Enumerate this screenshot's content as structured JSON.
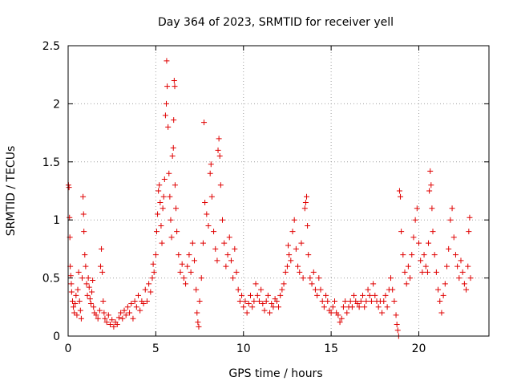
{
  "chart_data": {
    "type": "scatter",
    "title": "Day 364 of 2023, SRMTID for receiver yell",
    "xlabel": "GPS time / hours",
    "ylabel": "SRMTID / TECUs",
    "xlim": [
      0,
      24
    ],
    "ylim": [
      0,
      2.5
    ],
    "xticks": [
      0,
      5,
      10,
      15,
      20
    ],
    "yticks": [
      0,
      0.5,
      1,
      1.5,
      2,
      2.5
    ],
    "xtick_labels": [
      "0",
      "5",
      "10",
      "15",
      "20"
    ],
    "ytick_labels": [
      "0",
      "0.5",
      "1",
      "1.5",
      "2",
      "2.5"
    ],
    "grid": true,
    "marker": "+",
    "color": "#e00000",
    "series": [
      {
        "name": "yell",
        "points": [
          [
            0.02,
            1.3
          ],
          [
            0.05,
            1.28
          ],
          [
            0.08,
            1.02
          ],
          [
            0.1,
            0.85
          ],
          [
            0.12,
            0.6
          ],
          [
            0.15,
            0.52
          ],
          [
            0.18,
            0.45
          ],
          [
            0.2,
            0.38
          ],
          [
            0.25,
            0.3
          ],
          [
            0.3,
            0.25
          ],
          [
            0.35,
            0.2
          ],
          [
            0.4,
            0.28
          ],
          [
            0.45,
            0.35
          ],
          [
            0.5,
            0.18
          ],
          [
            0.55,
            0.4
          ],
          [
            0.6,
            0.55
          ],
          [
            0.65,
            0.3
          ],
          [
            0.7,
            0.22
          ],
          [
            0.75,
            0.15
          ],
          [
            0.8,
            0.5
          ],
          [
            0.85,
            1.2
          ],
          [
            0.88,
            1.05
          ],
          [
            0.9,
            0.9
          ],
          [
            0.95,
            0.7
          ],
          [
            1.0,
            0.6
          ],
          [
            1.05,
            0.45
          ],
          [
            1.1,
            0.35
          ],
          [
            1.15,
            0.5
          ],
          [
            1.2,
            0.42
          ],
          [
            1.25,
            0.32
          ],
          [
            1.3,
            0.28
          ],
          [
            1.35,
            0.38
          ],
          [
            1.4,
            0.48
          ],
          [
            1.45,
            0.25
          ],
          [
            1.5,
            0.2
          ],
          [
            1.6,
            0.18
          ],
          [
            1.7,
            0.15
          ],
          [
            1.8,
            0.22
          ],
          [
            1.85,
            0.6
          ],
          [
            1.9,
            0.75
          ],
          [
            1.95,
            0.55
          ],
          [
            2.0,
            0.3
          ],
          [
            2.05,
            0.2
          ],
          [
            2.1,
            0.15
          ],
          [
            2.2,
            0.12
          ],
          [
            2.3,
            0.18
          ],
          [
            2.4,
            0.1
          ],
          [
            2.5,
            0.14
          ],
          [
            2.6,
            0.08
          ],
          [
            2.7,
            0.12
          ],
          [
            2.8,
            0.1
          ],
          [
            2.9,
            0.16
          ],
          [
            3.0,
            0.2
          ],
          [
            3.1,
            0.15
          ],
          [
            3.2,
            0.22
          ],
          [
            3.3,
            0.18
          ],
          [
            3.4,
            0.25
          ],
          [
            3.5,
            0.2
          ],
          [
            3.6,
            0.28
          ],
          [
            3.7,
            0.15
          ],
          [
            3.8,
            0.3
          ],
          [
            3.9,
            0.25
          ],
          [
            4.0,
            0.35
          ],
          [
            4.1,
            0.22
          ],
          [
            4.2,
            0.3
          ],
          [
            4.3,
            0.28
          ],
          [
            4.4,
            0.4
          ],
          [
            4.5,
            0.3
          ],
          [
            4.6,
            0.45
          ],
          [
            4.7,
            0.38
          ],
          [
            4.8,
            0.5
          ],
          [
            4.85,
            0.62
          ],
          [
            4.9,
            0.55
          ],
          [
            5.0,
            0.7
          ],
          [
            5.05,
            0.9
          ],
          [
            5.1,
            1.05
          ],
          [
            5.15,
            1.25
          ],
          [
            5.2,
            1.3
          ],
          [
            5.25,
            1.15
          ],
          [
            5.3,
            0.95
          ],
          [
            5.35,
            0.8
          ],
          [
            5.4,
            1.1
          ],
          [
            5.45,
            1.2
          ],
          [
            5.5,
            1.35
          ],
          [
            5.55,
            1.9
          ],
          [
            5.6,
            2.0
          ],
          [
            5.62,
            2.37
          ],
          [
            5.65,
            2.15
          ],
          [
            5.7,
            1.8
          ],
          [
            5.75,
            1.4
          ],
          [
            5.8,
            1.2
          ],
          [
            5.85,
            1.0
          ],
          [
            5.9,
            0.85
          ],
          [
            5.95,
            1.55
          ],
          [
            6.0,
            1.62
          ],
          [
            6.02,
            1.86
          ],
          [
            6.05,
            2.2
          ],
          [
            6.08,
            2.15
          ],
          [
            6.1,
            1.3
          ],
          [
            6.15,
            1.1
          ],
          [
            6.2,
            0.9
          ],
          [
            6.3,
            0.7
          ],
          [
            6.4,
            0.55
          ],
          [
            6.5,
            0.62
          ],
          [
            6.6,
            0.5
          ],
          [
            6.7,
            0.45
          ],
          [
            6.8,
            0.6
          ],
          [
            6.9,
            0.7
          ],
          [
            7.0,
            0.55
          ],
          [
            7.1,
            0.8
          ],
          [
            7.2,
            0.65
          ],
          [
            7.3,
            0.4
          ],
          [
            7.35,
            0.2
          ],
          [
            7.4,
            0.12
          ],
          [
            7.45,
            0.08
          ],
          [
            7.5,
            0.3
          ],
          [
            7.6,
            0.5
          ],
          [
            7.7,
            0.8
          ],
          [
            7.75,
            1.84
          ],
          [
            7.8,
            1.15
          ],
          [
            7.9,
            1.05
          ],
          [
            8.0,
            0.95
          ],
          [
            8.1,
            1.4
          ],
          [
            8.15,
            1.48
          ],
          [
            8.2,
            1.2
          ],
          [
            8.3,
            0.9
          ],
          [
            8.4,
            0.75
          ],
          [
            8.5,
            0.65
          ],
          [
            8.55,
            1.6
          ],
          [
            8.6,
            1.7
          ],
          [
            8.65,
            1.55
          ],
          [
            8.7,
            1.3
          ],
          [
            8.8,
            1.0
          ],
          [
            8.9,
            0.8
          ],
          [
            9.0,
            0.6
          ],
          [
            9.1,
            0.7
          ],
          [
            9.2,
            0.85
          ],
          [
            9.3,
            0.65
          ],
          [
            9.4,
            0.5
          ],
          [
            9.5,
            0.75
          ],
          [
            9.6,
            0.55
          ],
          [
            9.7,
            0.4
          ],
          [
            9.8,
            0.3
          ],
          [
            9.9,
            0.35
          ],
          [
            10.0,
            0.25
          ],
          [
            10.1,
            0.3
          ],
          [
            10.2,
            0.2
          ],
          [
            10.3,
            0.28
          ],
          [
            10.4,
            0.35
          ],
          [
            10.5,
            0.25
          ],
          [
            10.6,
            0.3
          ],
          [
            10.7,
            0.45
          ],
          [
            10.8,
            0.35
          ],
          [
            10.9,
            0.3
          ],
          [
            11.0,
            0.4
          ],
          [
            11.1,
            0.28
          ],
          [
            11.2,
            0.22
          ],
          [
            11.3,
            0.3
          ],
          [
            11.4,
            0.35
          ],
          [
            11.5,
            0.2
          ],
          [
            11.6,
            0.28
          ],
          [
            11.7,
            0.25
          ],
          [
            11.8,
            0.32
          ],
          [
            11.9,
            0.3
          ],
          [
            12.0,
            0.25
          ],
          [
            12.1,
            0.35
          ],
          [
            12.2,
            0.4
          ],
          [
            12.3,
            0.45
          ],
          [
            12.4,
            0.55
          ],
          [
            12.5,
            0.6
          ],
          [
            12.55,
            0.78
          ],
          [
            12.6,
            0.7
          ],
          [
            12.7,
            0.65
          ],
          [
            12.8,
            0.9
          ],
          [
            12.9,
            1.0
          ],
          [
            13.0,
            0.75
          ],
          [
            13.1,
            0.6
          ],
          [
            13.2,
            0.55
          ],
          [
            13.3,
            0.8
          ],
          [
            13.4,
            0.5
          ],
          [
            13.5,
            1.1
          ],
          [
            13.55,
            1.15
          ],
          [
            13.6,
            1.2
          ],
          [
            13.65,
            0.95
          ],
          [
            13.7,
            0.7
          ],
          [
            13.8,
            0.5
          ],
          [
            13.9,
            0.45
          ],
          [
            14.0,
            0.55
          ],
          [
            14.1,
            0.4
          ],
          [
            14.2,
            0.35
          ],
          [
            14.3,
            0.5
          ],
          [
            14.4,
            0.4
          ],
          [
            14.5,
            0.3
          ],
          [
            14.6,
            0.25
          ],
          [
            14.7,
            0.35
          ],
          [
            14.8,
            0.3
          ],
          [
            14.9,
            0.22
          ],
          [
            15.0,
            0.2
          ],
          [
            15.1,
            0.25
          ],
          [
            15.2,
            0.3
          ],
          [
            15.3,
            0.2
          ],
          [
            15.4,
            0.18
          ],
          [
            15.5,
            0.12
          ],
          [
            15.6,
            0.15
          ],
          [
            15.7,
            0.25
          ],
          [
            15.8,
            0.3
          ],
          [
            15.9,
            0.2
          ],
          [
            16.0,
            0.25
          ],
          [
            16.1,
            0.3
          ],
          [
            16.2,
            0.25
          ],
          [
            16.3,
            0.35
          ],
          [
            16.4,
            0.3
          ],
          [
            16.5,
            0.28
          ],
          [
            16.6,
            0.25
          ],
          [
            16.7,
            0.3
          ],
          [
            16.8,
            0.35
          ],
          [
            16.9,
            0.25
          ],
          [
            17.0,
            0.3
          ],
          [
            17.1,
            0.4
          ],
          [
            17.2,
            0.35
          ],
          [
            17.3,
            0.3
          ],
          [
            17.4,
            0.45
          ],
          [
            17.5,
            0.35
          ],
          [
            17.6,
            0.3
          ],
          [
            17.7,
            0.25
          ],
          [
            17.8,
            0.3
          ],
          [
            17.9,
            0.2
          ],
          [
            18.0,
            0.3
          ],
          [
            18.1,
            0.35
          ],
          [
            18.2,
            0.25
          ],
          [
            18.3,
            0.4
          ],
          [
            18.4,
            0.5
          ],
          [
            18.5,
            0.4
          ],
          [
            18.6,
            0.3
          ],
          [
            18.7,
            0.18
          ],
          [
            18.75,
            0.1
          ],
          [
            18.8,
            0.05
          ],
          [
            18.85,
            0.0
          ],
          [
            18.9,
            1.25
          ],
          [
            18.95,
            1.2
          ],
          [
            19.0,
            0.9
          ],
          [
            19.1,
            0.7
          ],
          [
            19.2,
            0.55
          ],
          [
            19.3,
            0.45
          ],
          [
            19.4,
            0.6
          ],
          [
            19.5,
            0.5
          ],
          [
            19.6,
            0.7
          ],
          [
            19.7,
            0.85
          ],
          [
            19.8,
            1.0
          ],
          [
            19.9,
            1.1
          ],
          [
            20.0,
            0.8
          ],
          [
            20.1,
            0.65
          ],
          [
            20.2,
            0.55
          ],
          [
            20.3,
            0.7
          ],
          [
            20.4,
            0.6
          ],
          [
            20.5,
            0.55
          ],
          [
            20.55,
            0.8
          ],
          [
            20.6,
            1.25
          ],
          [
            20.65,
            1.42
          ],
          [
            20.7,
            1.3
          ],
          [
            20.75,
            1.1
          ],
          [
            20.8,
            0.9
          ],
          [
            20.9,
            0.7
          ],
          [
            21.0,
            0.55
          ],
          [
            21.1,
            0.4
          ],
          [
            21.2,
            0.3
          ],
          [
            21.3,
            0.2
          ],
          [
            21.4,
            0.35
          ],
          [
            21.5,
            0.45
          ],
          [
            21.6,
            0.6
          ],
          [
            21.7,
            0.75
          ],
          [
            21.8,
            1.0
          ],
          [
            21.9,
            1.1
          ],
          [
            22.0,
            0.85
          ],
          [
            22.1,
            0.7
          ],
          [
            22.2,
            0.6
          ],
          [
            22.3,
            0.5
          ],
          [
            22.4,
            0.65
          ],
          [
            22.5,
            0.55
          ],
          [
            22.6,
            0.45
          ],
          [
            22.7,
            0.4
          ],
          [
            22.8,
            0.6
          ],
          [
            22.85,
            0.9
          ],
          [
            22.9,
            1.02
          ],
          [
            22.95,
            0.5
          ]
        ]
      }
    ]
  }
}
